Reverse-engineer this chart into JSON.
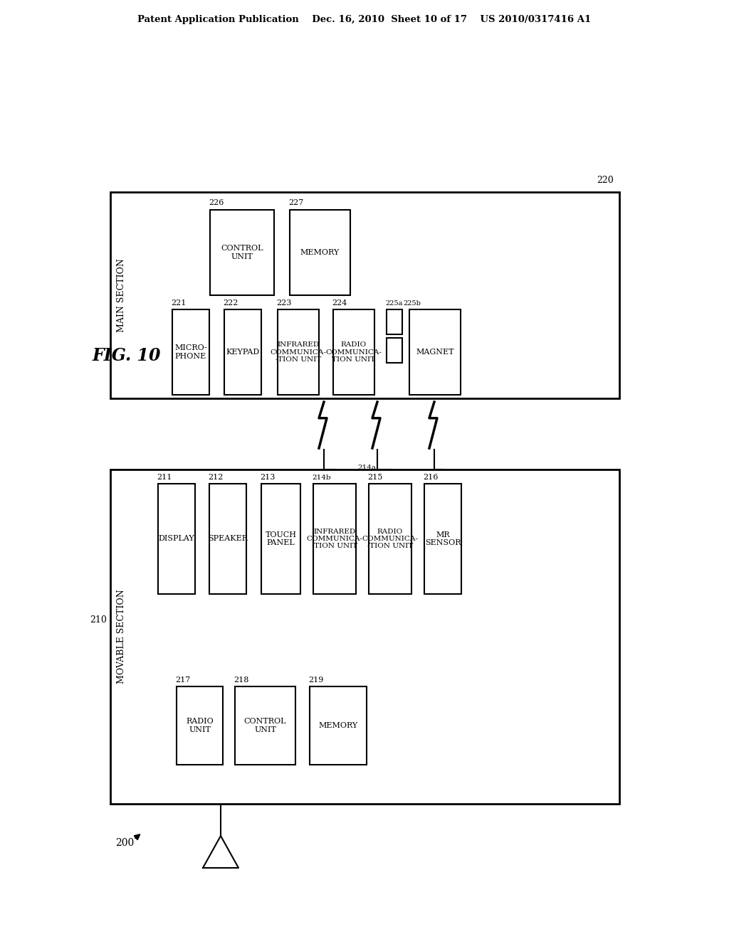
{
  "header": "Patent Application Publication    Dec. 16, 2010  Sheet 10 of 17    US 2010/0317416 A1",
  "bg": "#ffffff",
  "fig_label": "FIG. 10",
  "ref_200": "200",
  "ref_210": "210",
  "ref_220": "220",
  "main_section_text": "MAIN SECTION",
  "movable_section_text": "MOVABLE SECTION"
}
